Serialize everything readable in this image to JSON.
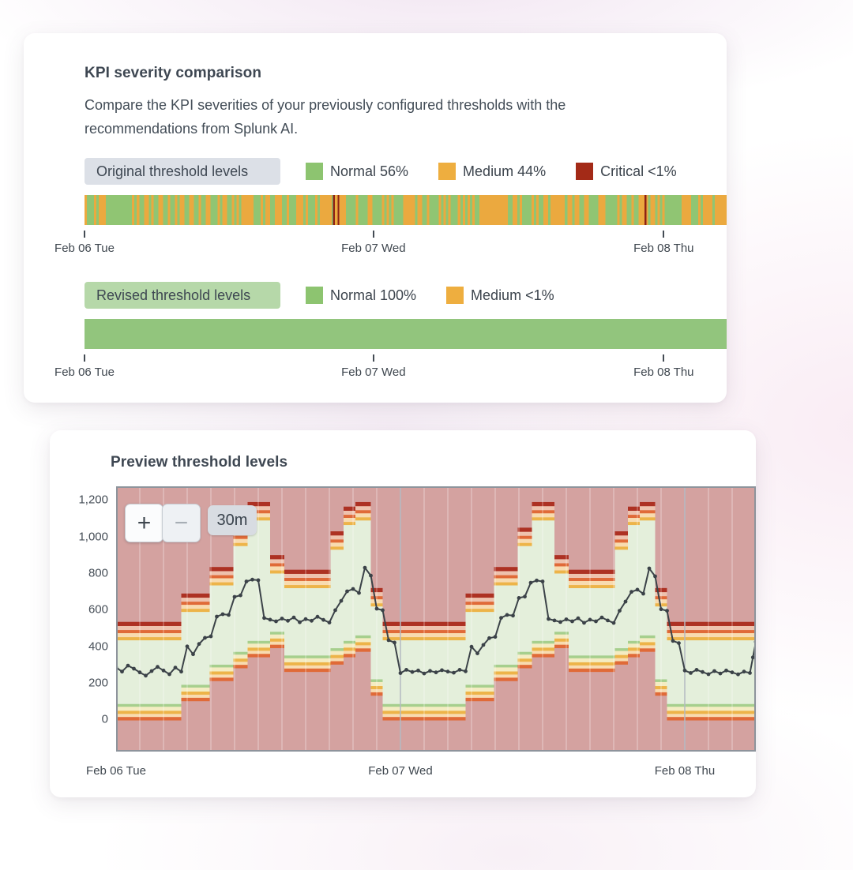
{
  "card1": {
    "title": "KPI severity comparison",
    "description": "Compare the KPI severities of your previously configured thresholds with the recommendations from Splunk AI.",
    "original": {
      "badge": "Original threshold levels",
      "legend": [
        {
          "name": "normal",
          "label": "Normal 56%",
          "color": "#8dc470"
        },
        {
          "name": "medium",
          "label": "Medium 44%",
          "color": "#eeae3f"
        },
        {
          "name": "critical",
          "label": "Critical <1%",
          "color": "#a32a17"
        }
      ],
      "bar": {
        "type": "striped",
        "slices": 270,
        "seed": 7,
        "medium_ratio": 0.4,
        "medium_clusters": [
          [
            0.235,
            0.26
          ],
          [
            0.37,
            0.405
          ],
          [
            0.615,
            0.655
          ],
          [
            0.73,
            0.77
          ],
          [
            0.862,
            0.888
          ],
          [
            0.962,
            0.99
          ]
        ],
        "critical_positions": [
          0.387,
          0.394,
          0.872
        ],
        "colors": {
          "normal": "#90c573",
          "medium": "#eba93f",
          "critical": "#8f2214"
        }
      }
    },
    "revised": {
      "badge": "Revised threshold levels",
      "legend": [
        {
          "name": "normal",
          "label": "Normal 100%",
          "color": "#8dc470"
        },
        {
          "name": "medium",
          "label": "Medium <1%",
          "color": "#eeae3f"
        }
      ],
      "bar": {
        "type": "solid",
        "color": "#92c57d"
      }
    },
    "axis": [
      {
        "label": "Feb 06 Tue",
        "pos": 0.0
      },
      {
        "label": "Feb 07 Wed",
        "pos": 0.45
      },
      {
        "label": "Feb 08 Thu",
        "pos": 0.902
      }
    ]
  },
  "card2": {
    "title": "Preview threshold levels",
    "controls": {
      "zoom_in_label": "+",
      "zoom_out_label": "−",
      "interval": "30m"
    }
  },
  "chart_data": [
    {
      "type": "area",
      "title": "Original threshold levels",
      "x_ticks": [
        "Feb 06 Tue",
        "Feb 07 Wed",
        "Feb 08 Thu"
      ],
      "series": [
        {
          "name": "Normal",
          "share": "56%"
        },
        {
          "name": "Medium",
          "share": "44%"
        },
        {
          "name": "Critical",
          "share": "<1%"
        }
      ]
    },
    {
      "type": "area",
      "title": "Revised threshold levels",
      "x_ticks": [
        "Feb 06 Tue",
        "Feb 07 Wed",
        "Feb 08 Thu"
      ],
      "series": [
        {
          "name": "Normal",
          "share": "100%"
        },
        {
          "name": "Medium",
          "share": "<1%"
        }
      ]
    },
    {
      "type": "line",
      "title": "Preview threshold levels",
      "interval": "30m",
      "total_hours": 54,
      "ylim": [
        -175,
        1275
      ],
      "yticks": [
        {
          "label": "1,200",
          "value": 1200
        },
        {
          "label": "1,000",
          "value": 1000
        },
        {
          "label": "800",
          "value": 800
        },
        {
          "label": "600",
          "value": 600
        },
        {
          "label": "400",
          "value": 400
        },
        {
          "label": "200",
          "value": 200
        },
        {
          "label": "0",
          "value": 0
        }
      ],
      "xlabels": [
        {
          "label": "Feb 06 Tue",
          "hour": 0
        },
        {
          "label": "Feb 07 Wed",
          "hour": 24
        },
        {
          "label": "Feb 08 Thu",
          "hour": 48
        }
      ],
      "day_starts": [
        0,
        24
      ],
      "day_segments": [
        [
          0,
          5.5,
          85,
          435
        ],
        [
          5.5,
          7.9,
          190,
          590
        ],
        [
          7.9,
          9.9,
          300,
          735
        ],
        [
          9.9,
          11.1,
          370,
          950
        ],
        [
          11.1,
          13,
          430,
          1090
        ],
        [
          13,
          14.2,
          480,
          800
        ],
        [
          14.2,
          18.1,
          350,
          720
        ],
        [
          18.1,
          19.2,
          390,
          930
        ],
        [
          19.2,
          20.2,
          430,
          1065
        ],
        [
          20.2,
          21.5,
          460,
          1090
        ],
        [
          21.5,
          22.5,
          220,
          620
        ],
        [
          22.5,
          24,
          85,
          435
        ]
      ],
      "extra_segments": [
        [
          48,
          54,
          85,
          435
        ]
      ],
      "band_template": {
        "above": [
          {
            "from": 0,
            "to": 17,
            "color": "medium_line"
          },
          {
            "from": 17,
            "to": 39,
            "color": "peach"
          },
          {
            "from": 39,
            "to": 56,
            "color": "high_line"
          },
          {
            "from": 56,
            "to": 78,
            "color": "pink_band"
          },
          {
            "from": 78,
            "to": 99,
            "color": "critical_line"
          }
        ],
        "below": [
          {
            "from": 0,
            "to": -15,
            "color": "normal_line"
          },
          {
            "from": -15,
            "to": -37,
            "color": "pale_yellow"
          },
          {
            "from": -37,
            "to": -54,
            "color": "medium_line"
          },
          {
            "from": -54,
            "to": -71,
            "color": "peach"
          },
          {
            "from": -71,
            "to": -88,
            "color": "high_line"
          }
        ]
      },
      "colors": {
        "plot_bg": "#d4a2a0",
        "normal_area": "#e4efdb",
        "normal_line": "#a6cf8d",
        "pale_yellow": "#f4ecc2",
        "medium_line": "#edb449",
        "peach": "#f8dbb0",
        "high_line": "#e06a38",
        "pink_band": "#eec2ae",
        "critical_line": "#ad3123",
        "kpi_line": "#3b4248",
        "grid_day": "#b3bac2",
        "grid_minor": "rgba(255,255,255,0.45)",
        "border": "#8e949c"
      },
      "points": [
        [
          0,
          285
        ],
        [
          0.5,
          262
        ],
        [
          1,
          295
        ],
        [
          1.5,
          278
        ],
        [
          2,
          258
        ],
        [
          2.5,
          240
        ],
        [
          3,
          265
        ],
        [
          3.5,
          288
        ],
        [
          4,
          268
        ],
        [
          4.5,
          248
        ],
        [
          5,
          284
        ],
        [
          5.5,
          262
        ],
        [
          6,
          400
        ],
        [
          6.5,
          357
        ],
        [
          7,
          413
        ],
        [
          7.5,
          447
        ],
        [
          8,
          455
        ],
        [
          8.5,
          563
        ],
        [
          9,
          576
        ],
        [
          9.5,
          572
        ],
        [
          10,
          671
        ],
        [
          10.5,
          679
        ],
        [
          11,
          755
        ],
        [
          11.5,
          765
        ],
        [
          12,
          762
        ],
        [
          12.5,
          555
        ],
        [
          13,
          546
        ],
        [
          13.5,
          537
        ],
        [
          14,
          552
        ],
        [
          14.5,
          540
        ],
        [
          15,
          558
        ],
        [
          15.5,
          532
        ],
        [
          16,
          549
        ],
        [
          16.5,
          540
        ],
        [
          17,
          562
        ],
        [
          17.5,
          545
        ],
        [
          18,
          530
        ],
        [
          18.5,
          598
        ],
        [
          19,
          649
        ],
        [
          19.5,
          701
        ],
        [
          20,
          714
        ],
        [
          20.5,
          692
        ],
        [
          21,
          830
        ],
        [
          21.5,
          787
        ],
        [
          22,
          606
        ],
        [
          22.5,
          598
        ],
        [
          23,
          434
        ],
        [
          23.5,
          421
        ],
        [
          24,
          254
        ],
        [
          24.5,
          272
        ],
        [
          25,
          260
        ],
        [
          25.5,
          268
        ],
        [
          26,
          252
        ],
        [
          26.5,
          266
        ],
        [
          27,
          258
        ],
        [
          27.5,
          270
        ],
        [
          28,
          262
        ],
        [
          28.5,
          256
        ],
        [
          29,
          272
        ],
        [
          29.5,
          264
        ],
        [
          30,
          398
        ],
        [
          30.5,
          362
        ],
        [
          31,
          408
        ],
        [
          31.5,
          445
        ],
        [
          32,
          452
        ],
        [
          32.5,
          556
        ],
        [
          33,
          572
        ],
        [
          33.5,
          568
        ],
        [
          34,
          665
        ],
        [
          34.5,
          672
        ],
        [
          35,
          748
        ],
        [
          35.5,
          760
        ],
        [
          36,
          755
        ],
        [
          36.5,
          550
        ],
        [
          37,
          542
        ],
        [
          37.5,
          533
        ],
        [
          38,
          548
        ],
        [
          38.5,
          537
        ],
        [
          39,
          554
        ],
        [
          39.5,
          529
        ],
        [
          40,
          546
        ],
        [
          40.5,
          537
        ],
        [
          41,
          558
        ],
        [
          41.5,
          542
        ],
        [
          42,
          528
        ],
        [
          42.5,
          595
        ],
        [
          43,
          645
        ],
        [
          43.5,
          698
        ],
        [
          44,
          710
        ],
        [
          44.5,
          688
        ],
        [
          45,
          826
        ],
        [
          45.5,
          783
        ],
        [
          46,
          603
        ],
        [
          46.5,
          595
        ],
        [
          47,
          430
        ],
        [
          47.5,
          418
        ],
        [
          48,
          268
        ],
        [
          48.5,
          255
        ],
        [
          49,
          272
        ],
        [
          49.5,
          260
        ],
        [
          50,
          248
        ],
        [
          50.5,
          265
        ],
        [
          51,
          252
        ],
        [
          51.5,
          268
        ],
        [
          52,
          258
        ],
        [
          52.5,
          247
        ],
        [
          53,
          262
        ],
        [
          53.5,
          255
        ],
        [
          53.75,
          340
        ],
        [
          54,
          425
        ]
      ]
    }
  ]
}
